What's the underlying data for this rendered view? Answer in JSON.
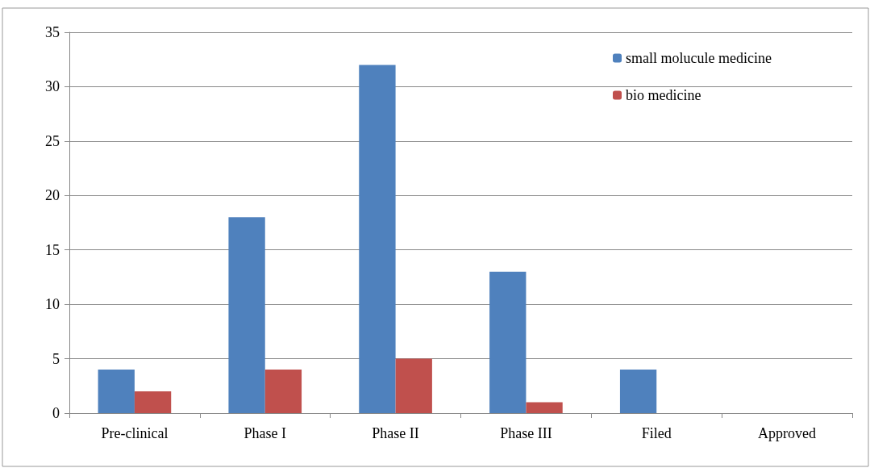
{
  "chart_data": {
    "type": "bar",
    "categories": [
      "Pre-clinical",
      "Phase I",
      "Phase II",
      "Phase III",
      "Filed",
      "Approved"
    ],
    "series": [
      {
        "name": "small molucule medicine",
        "color": "#4f81bd",
        "values": [
          4,
          18,
          32,
          13,
          4,
          0
        ]
      },
      {
        "name": "bio medicine",
        "color": "#c0504d",
        "values": [
          2,
          4,
          5,
          1,
          0,
          0
        ]
      }
    ],
    "ylim": [
      0,
      35
    ],
    "yticks": [
      0,
      5,
      10,
      15,
      20,
      25,
      30,
      35
    ],
    "grid": "y",
    "legend": "top right"
  }
}
